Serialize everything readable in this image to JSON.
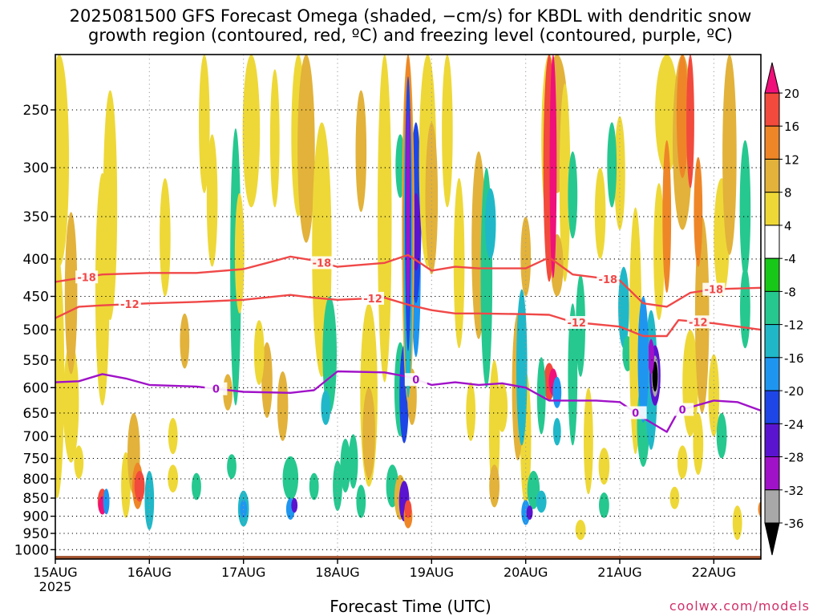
{
  "title_line1": "2025081500 GFS Forecast Omega (shaded, −cm/s) for KBDL with dendritic snow",
  "title_line2": "growth region (contoured, red, ºC) and freezing level (contoured, purple, ºC)",
  "credit": "coolwx.com/models",
  "chart_data": {
    "type": "heatmap",
    "title": "2025081500 GFS Forecast Omega (shaded, −cm/s) for KBDL with dendritic snow growth region (contoured, red, ºC) and freezing level (contoured, purple, ºC)",
    "xlabel": "Forecast Time (UTC)",
    "ylabel": "",
    "x_ticks": [
      "15AUG",
      "16AUG",
      "17AUG",
      "18AUG",
      "19AUG",
      "20AUG",
      "21AUG",
      "22AUG"
    ],
    "x_tick_sublabel": "2025",
    "xlim_hours": [
      0,
      180
    ],
    "y_ticks": [
      250,
      300,
      350,
      400,
      450,
      500,
      550,
      600,
      650,
      700,
      750,
      800,
      850,
      900,
      950,
      1000
    ],
    "ylim_hpa": [
      1030,
      210
    ],
    "y_scale": "log",
    "grid": true,
    "colorbar": {
      "labels": [
        20,
        16,
        12,
        8,
        4,
        -4,
        -8,
        -12,
        -16,
        -20,
        -24,
        -28,
        -32,
        -36
      ],
      "colors": [
        "#f0107a",
        "#f24a3c",
        "#ee8628",
        "#e2b23a",
        "#eed838",
        "#ffffff",
        "#18c818",
        "#26c890",
        "#20b8c8",
        "#1e96f0",
        "#1e46e6",
        "#5a14d0",
        "#a012c8",
        "#a8a8a8",
        "#000000"
      ]
    },
    "contour_minus18_label": "-18",
    "contour_minus12_label": "-12",
    "contour_zero_label": "0",
    "contour_minus18": [
      [
        0,
        430
      ],
      [
        12,
        420
      ],
      [
        24,
        418
      ],
      [
        36,
        418
      ],
      [
        48,
        413
      ],
      [
        54,
        405
      ],
      [
        60,
        397
      ],
      [
        66,
        402
      ],
      [
        72,
        410
      ],
      [
        84,
        405
      ],
      [
        90,
        395
      ],
      [
        96,
        415
      ],
      [
        102,
        410
      ],
      [
        108,
        412
      ],
      [
        120,
        412
      ],
      [
        126,
        398
      ],
      [
        132,
        420
      ],
      [
        144,
        428
      ],
      [
        150,
        460
      ],
      [
        156,
        465
      ],
      [
        162,
        445
      ],
      [
        168,
        440
      ],
      [
        180,
        438
      ]
    ],
    "contour_minus12": [
      [
        0,
        482
      ],
      [
        6,
        465
      ],
      [
        12,
        463
      ],
      [
        24,
        460
      ],
      [
        36,
        458
      ],
      [
        48,
        455
      ],
      [
        60,
        448
      ],
      [
        66,
        452
      ],
      [
        72,
        455
      ],
      [
        84,
        452
      ],
      [
        90,
        462
      ],
      [
        96,
        470
      ],
      [
        102,
        475
      ],
      [
        108,
        475
      ],
      [
        120,
        476
      ],
      [
        126,
        477
      ],
      [
        132,
        488
      ],
      [
        144,
        495
      ],
      [
        150,
        510
      ],
      [
        156,
        510
      ],
      [
        159,
        485
      ],
      [
        168,
        490
      ],
      [
        180,
        500
      ]
    ],
    "contour_zero": [
      [
        0,
        590
      ],
      [
        6,
        588
      ],
      [
        12,
        575
      ],
      [
        18,
        583
      ],
      [
        24,
        595
      ],
      [
        36,
        598
      ],
      [
        48,
        608
      ],
      [
        60,
        610
      ],
      [
        66,
        605
      ],
      [
        72,
        570
      ],
      [
        84,
        572
      ],
      [
        90,
        580
      ],
      [
        96,
        595
      ],
      [
        102,
        590
      ],
      [
        108,
        595
      ],
      [
        114,
        592
      ],
      [
        120,
        600
      ],
      [
        126,
        625
      ],
      [
        132,
        625
      ],
      [
        138,
        625
      ],
      [
        144,
        628
      ],
      [
        150,
        660
      ],
      [
        156,
        690
      ],
      [
        159,
        645
      ],
      [
        168,
        625
      ],
      [
        174,
        628
      ],
      [
        180,
        645
      ]
    ],
    "surface_pressure_hpa": 1020,
    "omega_cells": [
      [
        0.5,
        620,
        460,
        1.8,
        4
      ],
      [
        1,
        300,
        220,
        2.5,
        4
      ],
      [
        4,
        640,
        240,
        2,
        4
      ],
      [
        4,
        460,
        230,
        1.6,
        8
      ],
      [
        12,
        470,
        330,
        1.8,
        4
      ],
      [
        18,
        820,
        170,
        1.2,
        4
      ],
      [
        20,
        745,
        190,
        1.6,
        8
      ],
      [
        21,
        820,
        120,
        1.4,
        12
      ],
      [
        21.5,
        820,
        80,
        1.3,
        16
      ],
      [
        24,
        860,
        160,
        1.2,
        -12
      ],
      [
        14,
        360,
        250,
        1.8,
        4
      ],
      [
        28,
        380,
        140,
        1.4,
        4
      ],
      [
        30,
        800,
        70,
        1.3,
        4
      ],
      [
        38,
        250,
        150,
        1.4,
        4
      ],
      [
        40,
        340,
        140,
        1.4,
        4
      ],
      [
        46,
        450,
        370,
        1.4,
        -8
      ],
      [
        47,
        400,
        150,
        1.2,
        4
      ],
      [
        48,
        880,
        100,
        1.4,
        -12
      ],
      [
        45,
        770,
        60,
        1.2,
        -8
      ],
      [
        50,
        255,
        170,
        2.2,
        4
      ],
      [
        54,
        590,
        140,
        1.4,
        8
      ],
      [
        56,
        280,
        120,
        1.2,
        4
      ],
      [
        58,
        640,
        140,
        1.4,
        8
      ],
      [
        60,
        800,
        110,
        2,
        -8
      ],
      [
        62,
        275,
        150,
        1.8,
        4
      ],
      [
        64,
        280,
        200,
        2.2,
        8
      ],
      [
        68,
        420,
        320,
        2.5,
        4
      ],
      [
        70,
        550,
        200,
        1.8,
        -8
      ],
      [
        72,
        820,
        130,
        1.2,
        -8
      ],
      [
        74,
        770,
        130,
        1.3,
        -8
      ],
      [
        76,
        760,
        130,
        1.2,
        -8
      ],
      [
        78,
        860,
        90,
        1.2,
        -8
      ],
      [
        80,
        640,
        360,
        2.2,
        4
      ],
      [
        80,
        700,
        200,
        1.6,
        8
      ],
      [
        84,
        380,
        420,
        1.8,
        4
      ],
      [
        86,
        820,
        110,
        1.6,
        -8
      ],
      [
        88,
        610,
        180,
        1.5,
        -8
      ],
      [
        88,
        850,
        120,
        1.5,
        8
      ],
      [
        89,
        620,
        190,
        1.2,
        -20
      ],
      [
        89,
        860,
        110,
        1.3,
        -24
      ],
      [
        91,
        620,
        110,
        1.2,
        8
      ],
      [
        92,
        430,
        230,
        1.2,
        -16
      ],
      [
        92,
        360,
        200,
        1.4,
        -20
      ],
      [
        92,
        370,
        90,
        1.2,
        -24
      ],
      [
        95,
        300,
        220,
        2.2,
        4
      ],
      [
        96,
        340,
        160,
        1.6,
        8
      ],
      [
        100,
        260,
        160,
        1.4,
        4
      ],
      [
        103,
        420,
        220,
        1.4,
        4
      ],
      [
        108,
        400,
        230,
        1.8,
        8
      ],
      [
        110,
        450,
        300,
        1.5,
        -8
      ],
      [
        112,
        700,
        300,
        1.4,
        4
      ],
      [
        114,
        640,
        100,
        1.4,
        4
      ],
      [
        120,
        720,
        300,
        1.4,
        4
      ],
      [
        122,
        830,
        100,
        1.6,
        -8
      ],
      [
        124,
        860,
        60,
        1.3,
        -12
      ],
      [
        126,
        260,
        200,
        2,
        4
      ],
      [
        128,
        250,
        150,
        2.8,
        8
      ],
      [
        130,
        330,
        200,
        1.4,
        4
      ],
      [
        132,
        590,
        260,
        1.2,
        -8
      ],
      [
        134,
        500,
        160,
        1.2,
        -8
      ],
      [
        136,
        720,
        240,
        1.2,
        4
      ],
      [
        139,
        350,
        100,
        1.4,
        4
      ],
      [
        140,
        870,
        70,
        1.3,
        -8
      ],
      [
        144,
        310,
        110,
        1.4,
        4
      ],
      [
        145,
        470,
        120,
        1.4,
        -12
      ],
      [
        146,
        540,
        60,
        1.3,
        -8
      ],
      [
        148,
        540,
        400,
        1.6,
        4
      ],
      [
        150,
        680,
        180,
        1.6,
        -8
      ],
      [
        152,
        600,
        260,
        1.6,
        -12
      ],
      [
        153,
        580,
        110,
        1.4,
        -24
      ],
      [
        154,
        400,
        170,
        1.4,
        4
      ],
      [
        156,
        230,
        150,
        3,
        4
      ],
      [
        160,
        250,
        230,
        2.5,
        8
      ],
      [
        162,
        600,
        200,
        2,
        4
      ],
      [
        165,
        500,
        300,
        1.8,
        8
      ],
      [
        168,
        620,
        160,
        1.4,
        4
      ],
      [
        170,
        380,
        140,
        2,
        4
      ],
      [
        172,
        300,
        190,
        1.8,
        8
      ],
      [
        174,
        920,
        100,
        1.2,
        4
      ],
      [
        176,
        350,
        150,
        1.4,
        -8
      ],
      [
        78,
        290,
        110,
        1.4,
        8
      ],
      [
        112,
        820,
        110,
        1.3,
        8
      ],
      [
        134,
        940,
        60,
        1.3,
        4
      ],
      [
        140,
        770,
        90,
        1.4,
        4
      ],
      [
        158,
        850,
        60,
        1.2,
        4
      ],
      [
        160,
        760,
        80,
        1.3,
        4
      ],
      [
        118,
        615,
        280,
        1.5,
        8
      ],
      [
        52,
        540,
        110,
        1.3,
        4
      ],
      [
        120,
        400,
        100,
        1.3,
        8
      ],
      [
        128,
        410,
        80,
        1.6,
        8
      ],
      [
        170,
        700,
        100,
        1.3,
        -8
      ],
      [
        164,
        720,
        140,
        1.3,
        4
      ],
      [
        33,
        520,
        90,
        1.2,
        8
      ],
      [
        44,
        610,
        70,
        1.2,
        8
      ],
      [
        36,
        820,
        70,
        1.2,
        -8
      ],
      [
        66,
        820,
        70,
        1.2,
        -8
      ],
      [
        69,
        640,
        70,
        1.2,
        -12
      ],
      [
        30,
        700,
        80,
        1.2,
        4
      ],
      [
        6,
        760,
        80,
        1.2,
        4
      ],
      [
        132,
        330,
        90,
        1.2,
        -8
      ],
      [
        142,
        300,
        80,
        1.2,
        -8
      ],
      [
        176,
        470,
        120,
        1.3,
        -8
      ],
      [
        88,
        300,
        60,
        1.2,
        -8
      ],
      [
        106,
        650,
        120,
        1.2,
        4
      ]
    ],
    "omega_strong": [
      [
        90,
        420,
        420,
        1.6,
        8
      ],
      [
        90,
        400,
        400,
        1.3,
        12
      ],
      [
        90,
        410,
        340,
        1.1,
        16
      ],
      [
        90,
        900,
        70,
        1.1,
        12
      ],
      [
        90,
        880,
        50,
        0.9,
        16
      ],
      [
        90,
        430,
        380,
        1.1,
        -12
      ],
      [
        90,
        380,
        310,
        0.8,
        -20
      ],
      [
        90,
        360,
        220,
        0.5,
        -28
      ],
      [
        126,
        250,
        360,
        1.5,
        16
      ],
      [
        127,
        255,
        340,
        0.9,
        20
      ],
      [
        126,
        590,
        70,
        1.4,
        16
      ],
      [
        127,
        590,
        50,
        1.1,
        20
      ],
      [
        124,
        620,
        150,
        1.1,
        -8
      ],
      [
        12,
        860,
        70,
        1.2,
        16
      ],
      [
        12,
        870,
        50,
        1.0,
        20
      ],
      [
        180,
        880,
        40,
        0.7,
        12
      ],
      [
        13,
        860,
        70,
        0.8,
        -16
      ],
      [
        111,
        360,
        80,
        1.4,
        -12
      ],
      [
        119,
        580,
        280,
        1.4,
        -12
      ],
      [
        153,
        580,
        110,
        1.3,
        -24
      ],
      [
        153,
        580,
        75,
        0.9,
        -32
      ],
      [
        153,
        580,
        55,
        0.7,
        -36
      ],
      [
        152,
        545,
        60,
        0.8,
        -28
      ],
      [
        150,
        560,
        220,
        1.4,
        -16
      ],
      [
        60,
        880,
        60,
        1.1,
        -16
      ],
      [
        61,
        870,
        40,
        0.8,
        -24
      ],
      [
        120,
        890,
        70,
        1.1,
        -16
      ],
      [
        121,
        890,
        40,
        0.8,
        -24
      ],
      [
        48,
        880,
        50,
        0.9,
        -16
      ],
      [
        128,
        610,
        60,
        1.1,
        -16
      ],
      [
        128,
        690,
        60,
        1.0,
        -12
      ],
      [
        156,
        360,
        170,
        1.1,
        12
      ],
      [
        160,
        240,
        140,
        1.5,
        12
      ],
      [
        162,
        260,
        120,
        1.0,
        16
      ],
      [
        164,
        350,
        120,
        1.1,
        12
      ]
    ]
  }
}
